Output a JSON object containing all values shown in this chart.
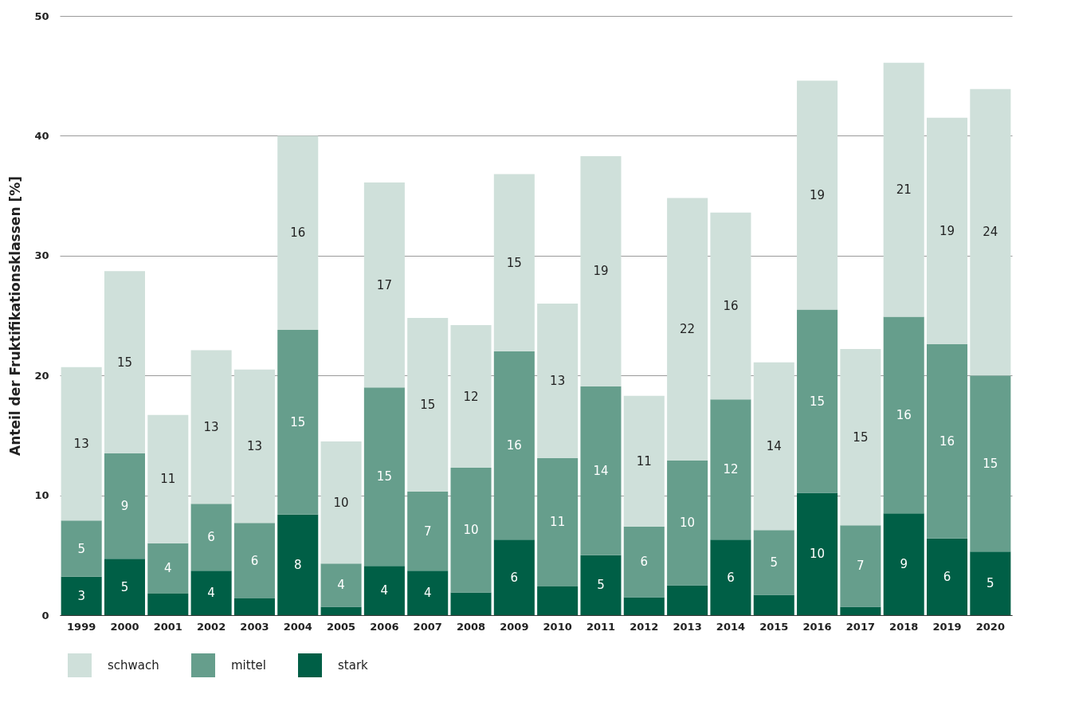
{
  "chart_data": {
    "type": "bar",
    "stacked": true,
    "ylabel": "Anteil der Fruktifikationsklassen [%]",
    "categories": [
      "1999",
      "2000",
      "2001",
      "2002",
      "2003",
      "2004",
      "2005",
      "2006",
      "2007",
      "2008",
      "2009",
      "2010",
      "2011",
      "2012",
      "2013",
      "2014",
      "2015",
      "2016",
      "2017",
      "2018",
      "2019",
      "2020"
    ],
    "series": [
      {
        "name": "stark",
        "color": "#005f46",
        "values": [
          3.2,
          4.7,
          1.8,
          3.7,
          1.4,
          8.4,
          0.7,
          4.1,
          3.7,
          1.9,
          6.3,
          2.4,
          5.0,
          1.5,
          2.5,
          6.3,
          1.7,
          10.2,
          0.7,
          8.5,
          6.4,
          5.3
        ],
        "value_labels": [
          "3",
          "5",
          null,
          "4",
          null,
          "8",
          null,
          "4",
          "4",
          null,
          "6",
          null,
          "5",
          null,
          null,
          "6",
          null,
          "10",
          null,
          "9",
          "6",
          "5"
        ]
      },
      {
        "name": "mittel",
        "color": "#669e8c",
        "values": [
          4.7,
          8.8,
          4.2,
          5.6,
          6.3,
          15.4,
          3.6,
          14.9,
          6.6,
          10.4,
          15.7,
          10.7,
          14.1,
          5.9,
          10.4,
          11.7,
          5.4,
          15.3,
          6.8,
          16.4,
          16.2,
          14.7
        ],
        "value_labels": [
          "5",
          "9",
          "4",
          "6",
          "6",
          "15",
          "4",
          "15",
          "7",
          "10",
          "16",
          "11",
          "14",
          "6",
          "10",
          "12",
          "5",
          "15",
          "7",
          "16",
          "16",
          "15"
        ]
      },
      {
        "name": "schwach",
        "color": "#cfe0da",
        "values": [
          12.8,
          15.2,
          10.7,
          12.8,
          12.8,
          16.2,
          10.2,
          17.1,
          14.5,
          11.9,
          14.8,
          12.9,
          19.2,
          10.9,
          21.9,
          15.6,
          14.0,
          19.1,
          14.7,
          21.2,
          18.9,
          23.9
        ],
        "value_labels": [
          "13",
          "15",
          "11",
          "13",
          "13",
          "16",
          "10",
          "17",
          "15",
          "12",
          "15",
          "13",
          "19",
          "11",
          "22",
          "16",
          "14",
          "19",
          "15",
          "21",
          "19",
          "24"
        ]
      }
    ],
    "ylim": [
      0,
      50
    ],
    "yticks": [
      0,
      10,
      20,
      30,
      40,
      50
    ],
    "grid": "y",
    "legend": "bottom left"
  }
}
